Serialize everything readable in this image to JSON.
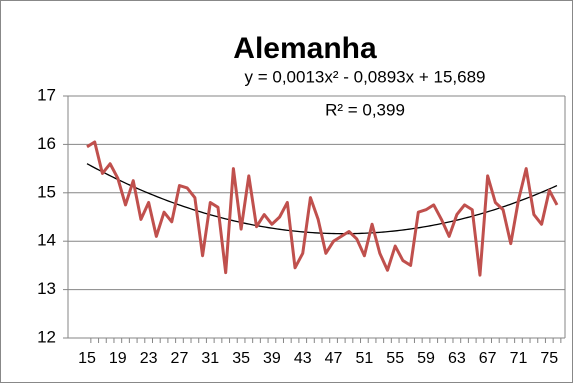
{
  "chart_data": {
    "type": "line",
    "title": "Alemanha",
    "categories": [
      "15",
      null,
      null,
      null,
      "19",
      null,
      null,
      null,
      "23",
      null,
      null,
      null,
      "27",
      null,
      null,
      null,
      "31",
      null,
      null,
      null,
      "35",
      null,
      null,
      null,
      "39",
      null,
      null,
      null,
      "43",
      null,
      null,
      null,
      "47",
      null,
      null,
      null,
      "51",
      null,
      null,
      null,
      "55",
      null,
      null,
      null,
      "59",
      null,
      null,
      null,
      "63",
      null,
      null,
      null,
      "67",
      null,
      null,
      null,
      "71",
      null,
      null,
      null,
      "75",
      null
    ],
    "series": [
      {
        "color": "#c0504d",
        "values": [
          15.95,
          16.05,
          15.4,
          15.6,
          15.3,
          14.75,
          15.25,
          14.45,
          14.8,
          14.1,
          14.6,
          14.4,
          15.15,
          15.1,
          14.9,
          13.7,
          14.8,
          14.7,
          13.35,
          15.5,
          14.25,
          15.35,
          14.3,
          14.55,
          14.35,
          14.5,
          14.8,
          13.45,
          13.75,
          14.9,
          14.45,
          13.75,
          14.0,
          14.1,
          14.2,
          14.05,
          13.7,
          14.35,
          13.75,
          13.4,
          13.9,
          13.6,
          13.5,
          14.6,
          14.65,
          14.75,
          14.45,
          14.1,
          14.55,
          14.75,
          14.65,
          13.3,
          15.35,
          14.8,
          14.65,
          13.95,
          14.85,
          15.5,
          14.55,
          14.35,
          15.05,
          14.75
        ]
      }
    ],
    "trendline": {
      "equation": "y = 0,0013x² - 0,0893x + 15,689",
      "r2": "R² = 0,399",
      "coefficients": [
        0.0013,
        -0.0893,
        15.689
      ],
      "color": "#000000"
    },
    "ylim": [
      12,
      17
    ],
    "yticks": [
      12,
      13,
      14,
      15,
      16,
      17
    ],
    "grid": true
  }
}
